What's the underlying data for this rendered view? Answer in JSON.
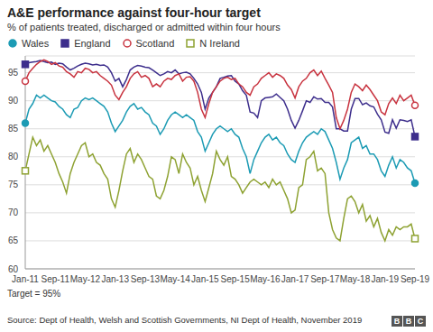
{
  "chart_data": {
    "type": "line",
    "title": "A&E performance against four-hour target",
    "subtitle": "% of patients treated, discharged or admitted within four hours",
    "annotations": [
      "Target = 95%"
    ],
    "source": "Source: Dept of Health, Welsh and Scottish Governments, NI Dept of Health, November 2019",
    "logo": "BBC",
    "categories": [
      "Jan-11",
      null,
      null,
      null,
      null,
      null,
      null,
      null,
      "Sep-11",
      null,
      null,
      null,
      null,
      null,
      null,
      null,
      "May-12",
      null,
      null,
      null,
      null,
      null,
      null,
      null,
      "Jan-13",
      null,
      null,
      null,
      null,
      null,
      null,
      null,
      "Sep-13",
      null,
      null,
      null,
      null,
      null,
      null,
      null,
      "May-14",
      null,
      null,
      null,
      null,
      null,
      null,
      null,
      "Jan-15",
      null,
      null,
      null,
      null,
      null,
      null,
      null,
      "Sep-15",
      null,
      null,
      null,
      null,
      null,
      null,
      null,
      "May-16",
      null,
      null,
      null,
      null,
      null,
      null,
      null,
      "Jan-17",
      null,
      null,
      null,
      null,
      null,
      null,
      null,
      "Sep-17",
      null,
      null,
      null,
      null,
      null,
      null,
      null,
      "May-18",
      null,
      null,
      null,
      null,
      null,
      null,
      null,
      "Jan-19",
      null,
      null,
      null,
      null,
      null,
      null,
      null,
      "Sep-19"
    ],
    "series": [
      {
        "name": "Wales",
        "color": "#1c9bb4",
        "marker": "circle",
        "values": [
          86.0,
          88.5,
          89.5,
          91.0,
          90.5,
          91.0,
          90.5,
          90.0,
          89.8,
          89.0,
          88.5,
          87.5,
          87.0,
          88.5,
          88.8,
          90.0,
          90.5,
          90.2,
          90.5,
          90.0,
          89.5,
          89.0,
          88.0,
          86.0,
          84.5,
          85.5,
          86.5,
          88.0,
          89.0,
          89.5,
          88.5,
          88.8,
          88.0,
          87.5,
          86.0,
          85.5,
          84.0,
          85.0,
          86.5,
          87.5,
          88.0,
          87.5,
          87.0,
          87.5,
          87.0,
          86.5,
          84.5,
          83.5,
          81.0,
          82.5,
          84.0,
          85.0,
          85.5,
          85.0,
          84.5,
          85.0,
          84.0,
          83.5,
          81.5,
          80.0,
          77.0,
          79.5,
          81.0,
          82.5,
          83.5,
          84.0,
          83.0,
          83.5,
          82.5,
          82.0,
          80.5,
          79.5,
          79.0,
          81.0,
          82.5,
          83.5,
          84.0,
          84.5,
          84.0,
          85.0,
          84.5,
          83.0,
          81.5,
          79.0,
          76.0,
          78.0,
          79.5,
          82.5,
          83.0,
          83.5,
          81.5,
          82.0,
          80.5,
          80.5,
          79.5,
          77.5,
          76.5,
          78.5,
          80.0,
          78.0,
          79.5,
          79.0,
          78.0,
          77.5,
          75.3
        ]
      },
      {
        "name": "England",
        "color": "#3d2e8c",
        "marker": "square",
        "values": [
          96.5,
          96.8,
          96.9,
          97.0,
          97.2,
          97.0,
          96.8,
          96.9,
          96.5,
          96.7,
          96.6,
          96.0,
          95.5,
          95.8,
          96.2,
          96.5,
          96.7,
          96.6,
          96.4,
          96.5,
          96.3,
          96.4,
          96.0,
          95.0,
          93.5,
          94.0,
          92.5,
          93.8,
          95.5,
          96.0,
          96.3,
          96.2,
          96.0,
          95.9,
          95.5,
          95.0,
          94.5,
          94.8,
          95.2,
          95.0,
          95.5,
          94.8,
          95.0,
          95.1,
          94.8,
          94.0,
          93.0,
          91.5,
          88.5,
          90.5,
          91.5,
          92.5,
          94.0,
          94.2,
          94.4,
          94.5,
          93.5,
          93.0,
          91.8,
          91.0,
          88.0,
          87.8,
          87.0,
          90.0,
          90.5,
          90.6,
          90.7,
          91.2,
          90.6,
          90.0,
          88.5,
          86.5,
          85.1,
          86.5,
          88.2,
          90.0,
          89.7,
          90.7,
          90.3,
          90.4,
          89.7,
          89.7,
          88.9,
          85.0,
          85.0,
          84.6,
          84.6,
          88.5,
          90.4,
          90.4,
          89.3,
          89.6,
          89.1,
          88.9,
          87.6,
          86.6,
          84.4,
          84.2,
          86.6,
          85.1,
          86.6,
          86.5,
          86.3,
          86.6,
          83.6
        ]
      },
      {
        "name": "Scotland",
        "color": "#c8333f",
        "marker": "open-circle",
        "values": [
          93.5,
          95.0,
          95.8,
          96.5,
          97.0,
          97.3,
          97.0,
          96.5,
          96.8,
          96.2,
          96.0,
          95.2,
          94.8,
          94.2,
          95.2,
          95.0,
          95.8,
          95.6,
          95.0,
          95.2,
          94.5,
          94.0,
          93.5,
          92.8,
          91.0,
          90.2,
          91.5,
          92.5,
          94.0,
          94.8,
          95.2,
          94.2,
          94.5,
          94.0,
          92.5,
          93.0,
          92.5,
          93.5,
          94.0,
          93.8,
          94.5,
          94.8,
          93.5,
          94.2,
          94.3,
          93.5,
          91.5,
          88.5,
          87.0,
          89.5,
          91.5,
          92.5,
          93.5,
          94.0,
          94.2,
          93.8,
          94.0,
          93.0,
          92.5,
          91.5,
          91.0,
          92.5,
          93.0,
          94.0,
          94.5,
          95.0,
          94.2,
          94.8,
          94.5,
          94.0,
          92.8,
          92.0,
          90.5,
          92.5,
          93.5,
          94.0,
          95.0,
          95.5,
          94.5,
          95.3,
          94.0,
          92.8,
          91.5,
          87.0,
          85.0,
          86.5,
          88.5,
          91.5,
          93.0,
          92.5,
          91.8,
          92.8,
          92.0,
          91.0,
          90.0,
          88.0,
          87.5,
          89.5,
          90.5,
          89.5,
          91.0,
          90.0,
          90.5,
          91.0,
          89.2
        ]
      },
      {
        "name": "N Ireland",
        "color": "#8ea232",
        "marker": "open-square",
        "values": [
          77.5,
          80.5,
          83.5,
          82.0,
          83.0,
          81.0,
          82.0,
          80.5,
          79.0,
          77.0,
          75.5,
          73.5,
          77.0,
          79.0,
          80.5,
          82.0,
          82.5,
          80.0,
          80.5,
          79.0,
          78.5,
          77.0,
          76.0,
          72.5,
          71.0,
          74.0,
          77.5,
          80.5,
          81.5,
          79.0,
          80.5,
          79.5,
          78.0,
          76.5,
          76.0,
          73.0,
          72.5,
          74.0,
          76.5,
          80.0,
          79.5,
          77.0,
          80.5,
          79.0,
          78.0,
          75.0,
          76.5,
          74.0,
          72.0,
          74.5,
          77.0,
          81.0,
          79.5,
          78.5,
          80.0,
          76.5,
          76.0,
          75.0,
          73.5,
          74.5,
          75.5,
          76.0,
          75.5,
          75.0,
          75.5,
          74.5,
          76.0,
          75.0,
          75.5,
          74.0,
          72.5,
          70.0,
          70.5,
          74.5,
          75.0,
          79.5,
          80.0,
          81.0,
          77.5,
          78.0,
          77.0,
          70.0,
          67.0,
          65.5,
          65.0,
          69.0,
          72.5,
          73.0,
          72.0,
          70.0,
          71.5,
          68.5,
          69.5,
          67.5,
          69.0,
          66.5,
          65.0,
          67.0,
          66.0,
          67.5,
          67.0,
          67.5,
          67.5,
          68.0,
          65.4
        ]
      }
    ],
    "ylim": [
      60,
      98
    ],
    "yticks": [
      60,
      65,
      70,
      75,
      80,
      85,
      90,
      95
    ],
    "grid": true,
    "legend": "top-left"
  }
}
